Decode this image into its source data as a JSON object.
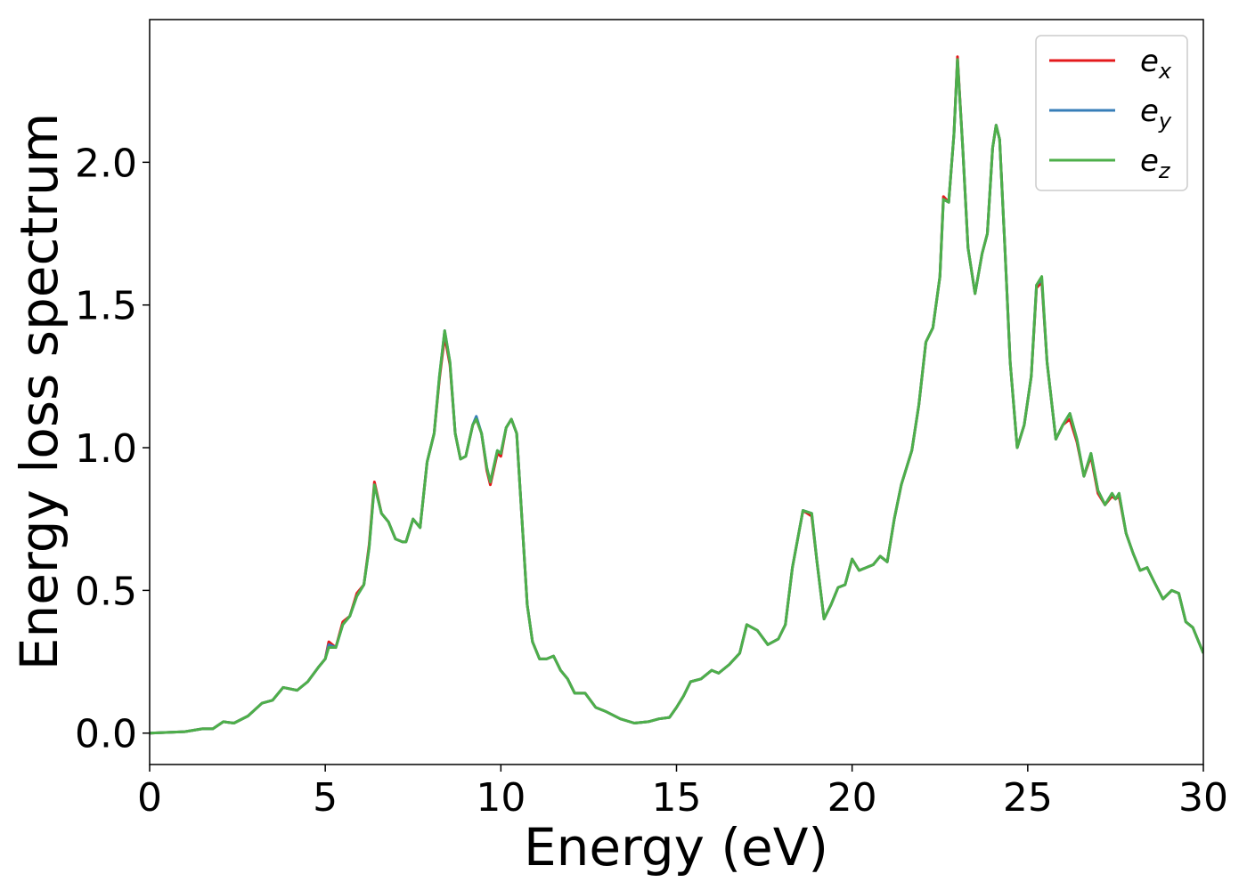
{
  "chart_data": {
    "type": "line",
    "xlabel": "Energy (eV)",
    "ylabel": "Energy loss spectrum",
    "x": [
      0,
      1,
      1.5,
      1.8,
      2.1,
      2.4,
      2.8,
      3.2,
      3.5,
      3.8,
      4.2,
      4.5,
      4.8,
      5.0,
      5.1,
      5.3,
      5.5,
      5.7,
      5.9,
      6.1,
      6.25,
      6.4,
      6.6,
      6.8,
      7.0,
      7.2,
      7.3,
      7.5,
      7.7,
      7.9,
      8.1,
      8.25,
      8.4,
      8.55,
      8.7,
      8.85,
      9.0,
      9.2,
      9.3,
      9.45,
      9.6,
      9.7,
      9.9,
      10.0,
      10.15,
      10.3,
      10.45,
      10.6,
      10.75,
      10.9,
      11.1,
      11.3,
      11.5,
      11.7,
      11.9,
      12.1,
      12.4,
      12.7,
      13.0,
      13.4,
      13.8,
      14.2,
      14.5,
      14.8,
      15.0,
      15.2,
      15.4,
      15.7,
      16.0,
      16.2,
      16.5,
      16.8,
      17.0,
      17.3,
      17.6,
      17.9,
      18.1,
      18.3,
      18.6,
      18.85,
      19.0,
      19.2,
      19.4,
      19.6,
      19.8,
      20.0,
      20.2,
      20.4,
      20.6,
      20.8,
      21.0,
      21.2,
      21.4,
      21.7,
      21.9,
      22.1,
      22.3,
      22.5,
      22.6,
      22.75,
      22.9,
      23.0,
      23.15,
      23.3,
      23.5,
      23.7,
      23.85,
      24.0,
      24.1,
      24.2,
      24.35,
      24.5,
      24.7,
      24.9,
      25.1,
      25.25,
      25.4,
      25.55,
      25.8,
      26.0,
      26.2,
      26.4,
      26.6,
      26.8,
      27.0,
      27.2,
      27.4,
      27.5,
      27.6,
      27.8,
      28.0,
      28.2,
      28.4,
      28.6,
      28.85,
      29.1,
      29.3,
      29.5,
      29.7,
      30.0
    ],
    "series": [
      {
        "name": "ex",
        "color": "#e41a1c",
        "values": [
          0,
          0.005,
          0.015,
          0.015,
          0.04,
          0.035,
          0.06,
          0.105,
          0.115,
          0.16,
          0.15,
          0.18,
          0.23,
          0.26,
          0.32,
          0.3,
          0.39,
          0.41,
          0.49,
          0.52,
          0.66,
          0.88,
          0.77,
          0.74,
          0.68,
          0.67,
          0.67,
          0.75,
          0.72,
          0.95,
          1.05,
          1.24,
          1.39,
          1.29,
          1.05,
          0.96,
          0.97,
          1.08,
          1.1,
          1.05,
          0.92,
          0.87,
          0.98,
          0.97,
          1.07,
          1.1,
          1.05,
          0.75,
          0.45,
          0.32,
          0.26,
          0.26,
          0.27,
          0.22,
          0.19,
          0.14,
          0.14,
          0.09,
          0.075,
          0.05,
          0.035,
          0.04,
          0.05,
          0.055,
          0.09,
          0.13,
          0.18,
          0.19,
          0.22,
          0.21,
          0.24,
          0.28,
          0.38,
          0.36,
          0.31,
          0.33,
          0.38,
          0.58,
          0.78,
          0.76,
          0.6,
          0.4,
          0.45,
          0.51,
          0.52,
          0.61,
          0.57,
          0.58,
          0.59,
          0.62,
          0.6,
          0.75,
          0.87,
          0.99,
          1.15,
          1.37,
          1.42,
          1.6,
          1.88,
          1.86,
          2.1,
          2.37,
          2.05,
          1.7,
          1.54,
          1.68,
          1.75,
          2.05,
          2.13,
          2.08,
          1.7,
          1.3,
          1.0,
          1.08,
          1.25,
          1.56,
          1.58,
          1.3,
          1.03,
          1.08,
          1.1,
          1.02,
          0.9,
          0.97,
          0.84,
          0.8,
          0.83,
          0.82,
          0.83,
          0.7,
          0.63,
          0.57,
          0.58,
          0.53,
          0.47,
          0.5,
          0.49,
          0.39,
          0.37,
          0.28
        ]
      },
      {
        "name": "ey",
        "color": "#377eb8",
        "values": [
          0,
          0.005,
          0.015,
          0.015,
          0.04,
          0.035,
          0.06,
          0.105,
          0.115,
          0.16,
          0.15,
          0.18,
          0.23,
          0.26,
          0.31,
          0.3,
          0.38,
          0.41,
          0.48,
          0.52,
          0.65,
          0.87,
          0.77,
          0.74,
          0.68,
          0.67,
          0.67,
          0.75,
          0.72,
          0.95,
          1.05,
          1.25,
          1.41,
          1.3,
          1.05,
          0.96,
          0.97,
          1.08,
          1.11,
          1.05,
          0.93,
          0.88,
          0.99,
          0.98,
          1.07,
          1.1,
          1.05,
          0.75,
          0.45,
          0.32,
          0.26,
          0.26,
          0.27,
          0.22,
          0.19,
          0.14,
          0.14,
          0.09,
          0.075,
          0.05,
          0.035,
          0.04,
          0.05,
          0.055,
          0.09,
          0.13,
          0.18,
          0.19,
          0.22,
          0.21,
          0.24,
          0.28,
          0.38,
          0.36,
          0.31,
          0.33,
          0.38,
          0.58,
          0.78,
          0.77,
          0.6,
          0.4,
          0.45,
          0.51,
          0.52,
          0.61,
          0.57,
          0.58,
          0.59,
          0.62,
          0.6,
          0.75,
          0.87,
          0.99,
          1.15,
          1.37,
          1.42,
          1.6,
          1.87,
          1.86,
          2.1,
          2.36,
          2.05,
          1.7,
          1.54,
          1.68,
          1.75,
          2.05,
          2.13,
          2.08,
          1.7,
          1.3,
          1.0,
          1.08,
          1.25,
          1.57,
          1.59,
          1.3,
          1.03,
          1.08,
          1.12,
          1.03,
          0.9,
          0.98,
          0.85,
          0.8,
          0.84,
          0.82,
          0.84,
          0.7,
          0.63,
          0.57,
          0.58,
          0.53,
          0.47,
          0.5,
          0.49,
          0.39,
          0.37,
          0.28
        ]
      },
      {
        "name": "ez",
        "color": "#4daf4a",
        "values": [
          0,
          0.005,
          0.015,
          0.015,
          0.04,
          0.035,
          0.06,
          0.105,
          0.115,
          0.16,
          0.15,
          0.18,
          0.23,
          0.26,
          0.3,
          0.3,
          0.38,
          0.41,
          0.48,
          0.52,
          0.65,
          0.87,
          0.77,
          0.74,
          0.68,
          0.67,
          0.67,
          0.75,
          0.72,
          0.95,
          1.05,
          1.25,
          1.41,
          1.3,
          1.05,
          0.96,
          0.97,
          1.08,
          1.1,
          1.05,
          0.93,
          0.88,
          0.99,
          0.98,
          1.07,
          1.1,
          1.05,
          0.75,
          0.45,
          0.32,
          0.26,
          0.26,
          0.27,
          0.22,
          0.19,
          0.14,
          0.14,
          0.09,
          0.075,
          0.05,
          0.035,
          0.04,
          0.05,
          0.055,
          0.09,
          0.13,
          0.18,
          0.19,
          0.22,
          0.21,
          0.24,
          0.28,
          0.38,
          0.36,
          0.31,
          0.33,
          0.38,
          0.58,
          0.78,
          0.77,
          0.6,
          0.4,
          0.45,
          0.51,
          0.52,
          0.61,
          0.57,
          0.58,
          0.59,
          0.62,
          0.6,
          0.75,
          0.87,
          0.99,
          1.15,
          1.37,
          1.42,
          1.6,
          1.87,
          1.86,
          2.1,
          2.36,
          2.05,
          1.7,
          1.54,
          1.68,
          1.75,
          2.05,
          2.13,
          2.08,
          1.7,
          1.3,
          1.0,
          1.08,
          1.25,
          1.57,
          1.6,
          1.3,
          1.03,
          1.08,
          1.12,
          1.03,
          0.9,
          0.98,
          0.85,
          0.8,
          0.84,
          0.82,
          0.84,
          0.7,
          0.63,
          0.57,
          0.58,
          0.53,
          0.47,
          0.5,
          0.49,
          0.39,
          0.37,
          0.28
        ]
      }
    ],
    "xlim": [
      0,
      30
    ],
    "xticks": [
      0,
      5,
      10,
      15,
      20,
      25,
      30
    ],
    "ylim": [
      -0.11,
      2.5
    ],
    "yticks": [
      {
        "value": 0,
        "label": "0.0"
      },
      0.5,
      {
        "value": 1,
        "label": "1.0"
      },
      1.5,
      {
        "value": 2,
        "label": "2.0"
      }
    ],
    "legend": "upper right",
    "grid": false
  }
}
